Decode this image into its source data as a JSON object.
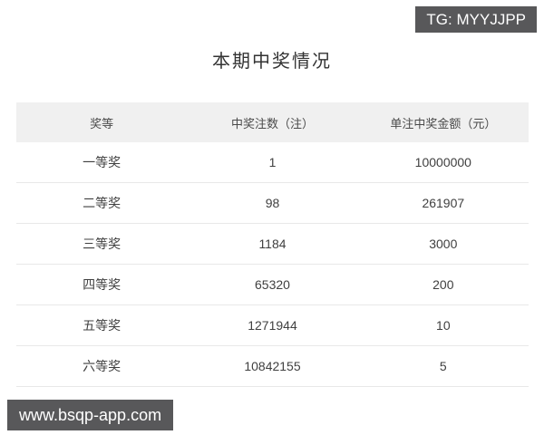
{
  "overlays": {
    "tg_badge": "TG: MYYJJPP",
    "site_badge": "www.bsqp-app.com"
  },
  "main": {
    "title": "本期中奖情况"
  },
  "table": {
    "columns": [
      "奖等",
      "中奖注数（注）",
      "单注中奖金额（元）"
    ],
    "rows": [
      {
        "prize": "一等奖",
        "count": "1",
        "amount": "10000000"
      },
      {
        "prize": "二等奖",
        "count": "98",
        "amount": "261907"
      },
      {
        "prize": "三等奖",
        "count": "1184",
        "amount": "3000"
      },
      {
        "prize": "四等奖",
        "count": "65320",
        "amount": "200"
      },
      {
        "prize": "五等奖",
        "count": "1271944",
        "amount": "10"
      },
      {
        "prize": "六等奖",
        "count": "10842155",
        "amount": "5"
      }
    ]
  },
  "colors": {
    "badge_bg": "#58585a",
    "header_bg": "#f0f0f0",
    "row_border": "#e8e8e8",
    "title_text": "#333333",
    "cell_text": "#404040"
  }
}
